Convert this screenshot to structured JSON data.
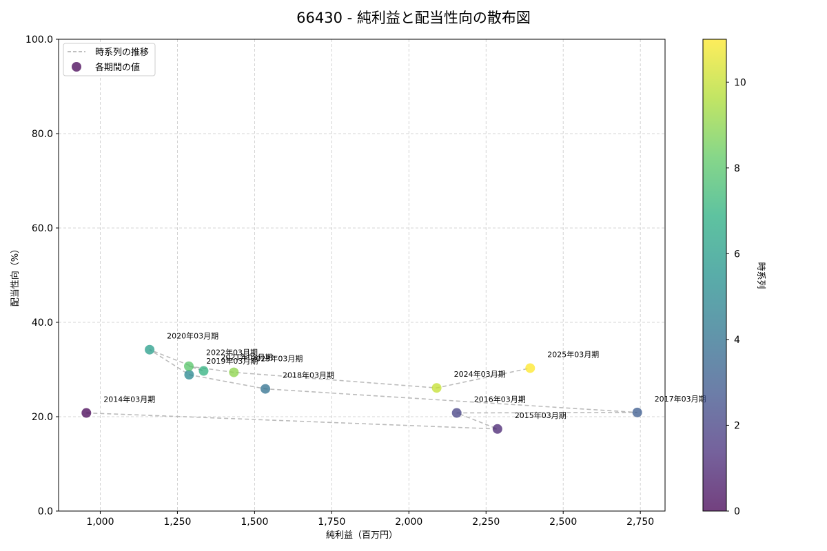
{
  "chart_data": {
    "type": "scatter",
    "title": "66430 - 純利益と配当性向の散布図",
    "xlabel": "純利益（百万円）",
    "ylabel": "配当性向（%）",
    "xlim": [
      865,
      2830
    ],
    "ylim": [
      0,
      100
    ],
    "x_ticks": [
      1000,
      1250,
      1500,
      1750,
      2000,
      2250,
      2500,
      2750
    ],
    "x_tick_labels": [
      "1,000",
      "1,250",
      "1,500",
      "1,750",
      "2,000",
      "2,250",
      "2,500",
      "2,750"
    ],
    "y_ticks": [
      0,
      20,
      40,
      60,
      80,
      100
    ],
    "y_tick_labels": [
      "0.0",
      "20.0",
      "40.0",
      "60.0",
      "80.0",
      "100.0"
    ],
    "grid": true,
    "legend": {
      "position": "top-left",
      "line_label": "時系列の推移",
      "marker_label": "各期間の値"
    },
    "colorbar": {
      "label": "時系列",
      "range": [
        0,
        11
      ],
      "ticks": [
        0,
        2,
        4,
        6,
        8,
        10
      ],
      "tick_labels": [
        "0",
        "2",
        "4",
        "6",
        "8",
        "10"
      ]
    },
    "points": [
      {
        "label": "2014年03月期",
        "x": 955,
        "y": 20.8,
        "t": 0
      },
      {
        "label": "2015年03月期",
        "x": 2287,
        "y": 17.4,
        "t": 1
      },
      {
        "label": "2016年03月期",
        "x": 2155,
        "y": 20.8,
        "t": 2
      },
      {
        "label": "2017年03月期",
        "x": 2740,
        "y": 20.9,
        "t": 3
      },
      {
        "label": "2018年03月期",
        "x": 1535,
        "y": 25.9,
        "t": 4
      },
      {
        "label": "2019年03月期",
        "x": 1288,
        "y": 28.9,
        "t": 5
      },
      {
        "label": "2020年03月期",
        "x": 1160,
        "y": 34.2,
        "t": 6
      },
      {
        "label": "2021年03月期",
        "x": 1335,
        "y": 29.7,
        "t": 7
      },
      {
        "label": "2022年03月期",
        "x": 1287,
        "y": 30.7,
        "t": 8
      },
      {
        "label": "2023年03月期",
        "x": 1433,
        "y": 29.4,
        "t": 9
      },
      {
        "label": "2024年03月期",
        "x": 2090,
        "y": 26.1,
        "t": 10
      },
      {
        "label": "2025年03月期",
        "x": 2393,
        "y": 30.3,
        "t": 11
      }
    ]
  }
}
